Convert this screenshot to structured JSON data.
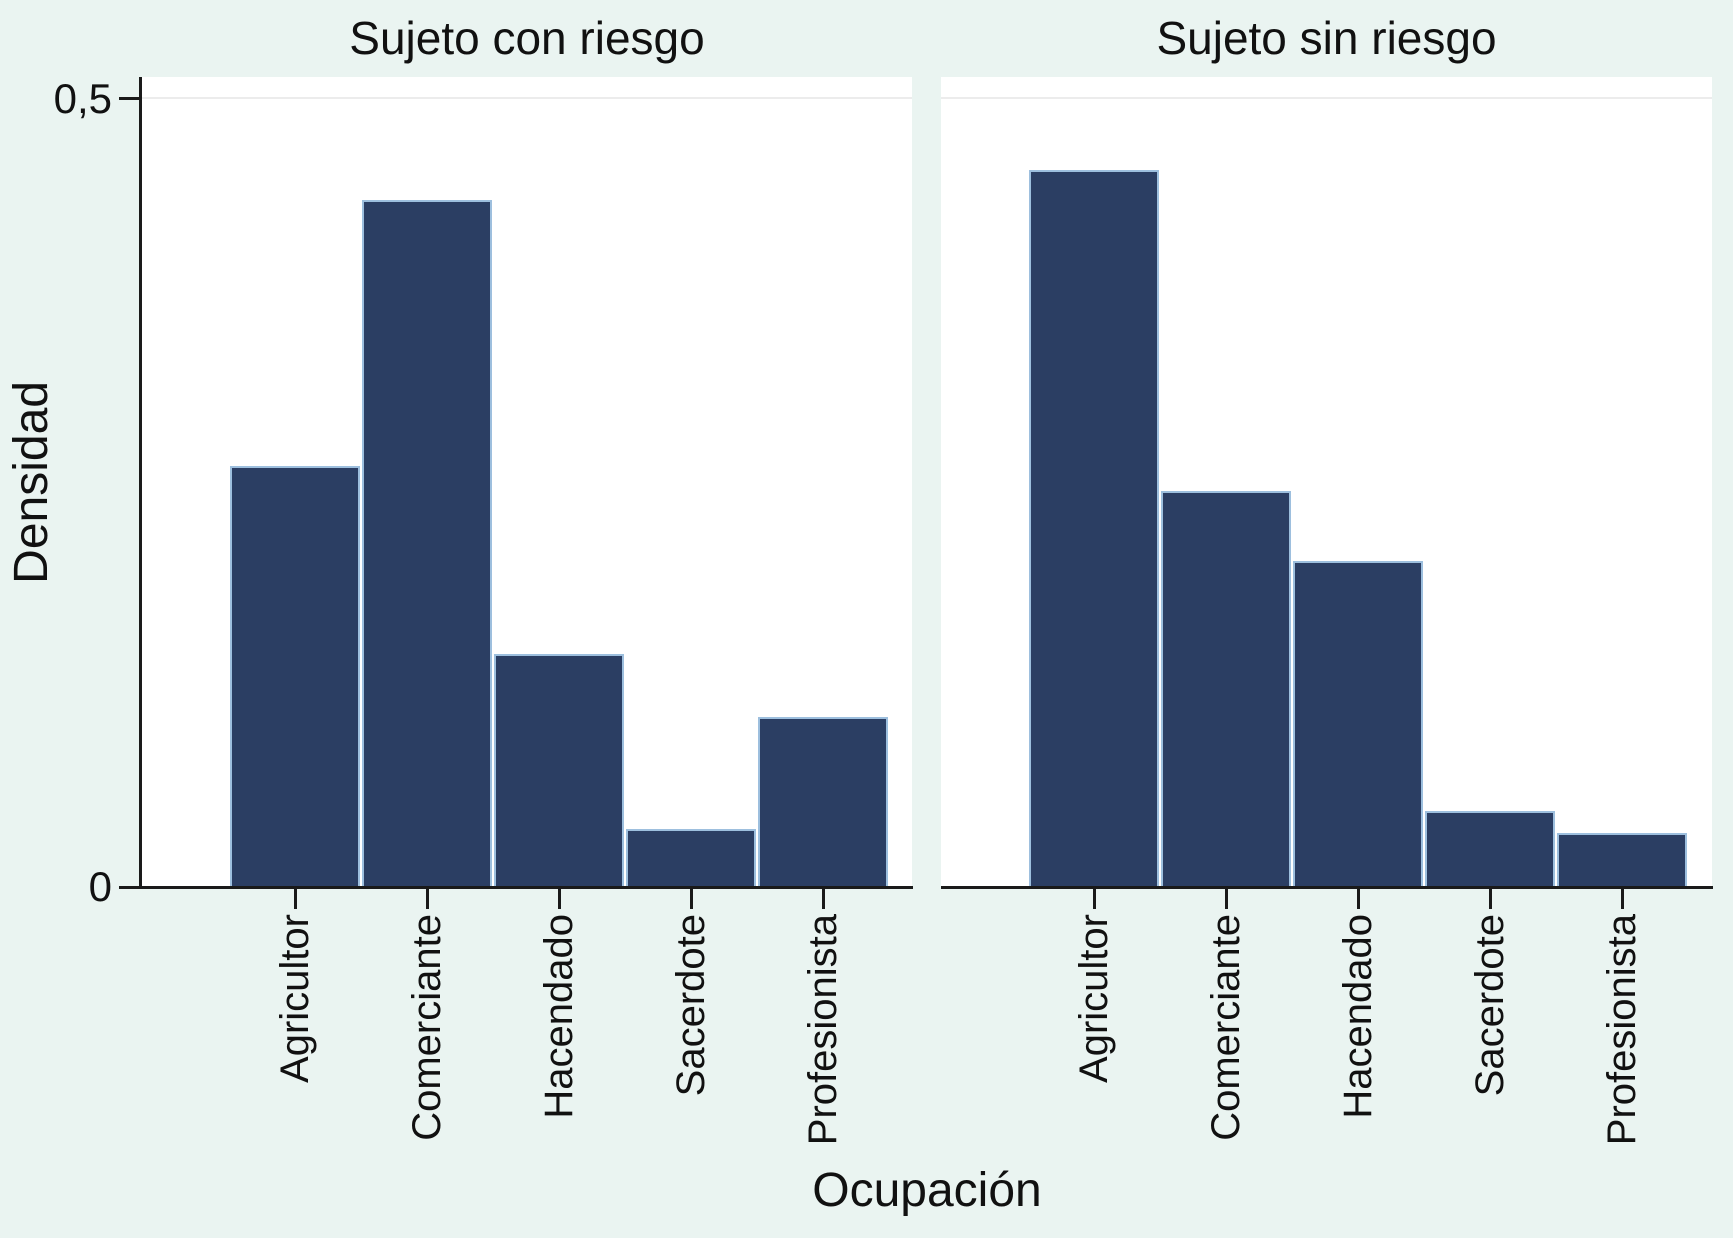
{
  "colors": {
    "page_background": "#eaf4f1",
    "plot_background": "#ffffff",
    "bar_fill": "#2b3e63",
    "bar_border": "#9dbfde",
    "axis_line": "#1a1a1a",
    "gridline": "#ececec",
    "text": "#111111"
  },
  "chart_data": {
    "type": "bar",
    "layout": "two side-by-side facet panels sharing y-axis and category x-axis; only left panel shows y-axis line; single faint gridline at y=0.5; x category labels rotated 90° reading bottom-to-top",
    "categories": [
      "Agricultor",
      "Comerciante",
      "Hacendado",
      "Sacerdote",
      "Profesionista"
    ],
    "series": [
      {
        "name": "Sujeto con riesgo",
        "values": [
          0.267,
          0.436,
          0.148,
          0.037,
          0.108
        ]
      },
      {
        "name": "Sujeto sin riesgo",
        "values": [
          0.455,
          0.251,
          0.207,
          0.048,
          0.034
        ]
      }
    ],
    "xlabel": "Ocupación",
    "ylabel": "Densidad",
    "ylim": [
      0,
      0.5
    ],
    "yticks": [
      {
        "value": 0,
        "label": "0"
      },
      {
        "value": 0.5,
        "label": "0,5"
      }
    ],
    "grid": "horizontal gridline at 0.5 only",
    "legend": "none"
  }
}
